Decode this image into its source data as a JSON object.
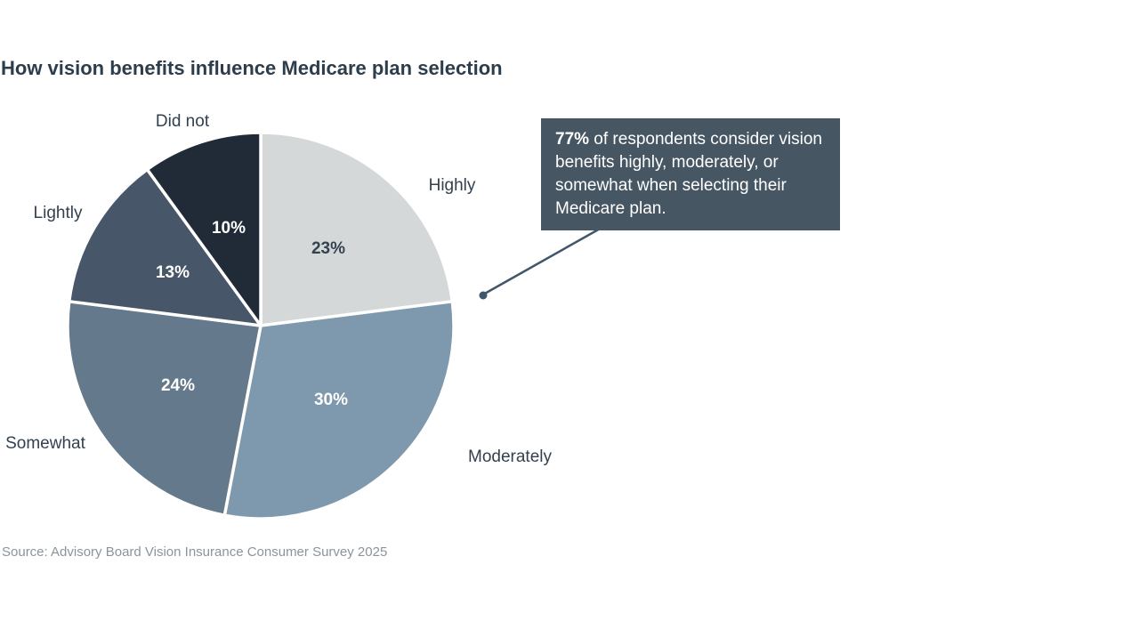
{
  "title": "How vision benefits influence Medicare plan selection",
  "source": "Source: Advisory Board Vision Insurance Consumer Survey 2025",
  "callout": {
    "highlight": "77%",
    "text": " of respondents consider vision benefits highly, moderately, or somewhat when selecting their Medicare plan.",
    "bg_color": "#475663",
    "text_color": "#ffffff",
    "connector_color": "#42566b"
  },
  "chart_data": {
    "type": "pie",
    "title": "How vision benefits influence Medicare plan selection",
    "start_angle_deg": 0,
    "direction": "clockwise",
    "categories": [
      "Highly",
      "Moderately",
      "Somewhat",
      "Lightly",
      "Did not"
    ],
    "values": [
      23,
      30,
      24,
      13,
      10
    ],
    "slices": [
      {
        "label": "Highly",
        "value": 23,
        "display": "23%",
        "color": "#d5d8d9",
        "label_color": "#33424f"
      },
      {
        "label": "Moderately",
        "value": 30,
        "display": "30%",
        "color": "#7e99ad",
        "label_color": "#ffffff"
      },
      {
        "label": "Somewhat",
        "value": 24,
        "display": "24%",
        "color": "#64798b",
        "label_color": "#ffffff"
      },
      {
        "label": "Lightly",
        "value": 13,
        "display": "13%",
        "color": "#475669",
        "label_color": "#ffffff"
      },
      {
        "label": "Did not",
        "value": 10,
        "display": "10%",
        "color": "#212b37",
        "label_color": "#ffffff"
      }
    ]
  }
}
